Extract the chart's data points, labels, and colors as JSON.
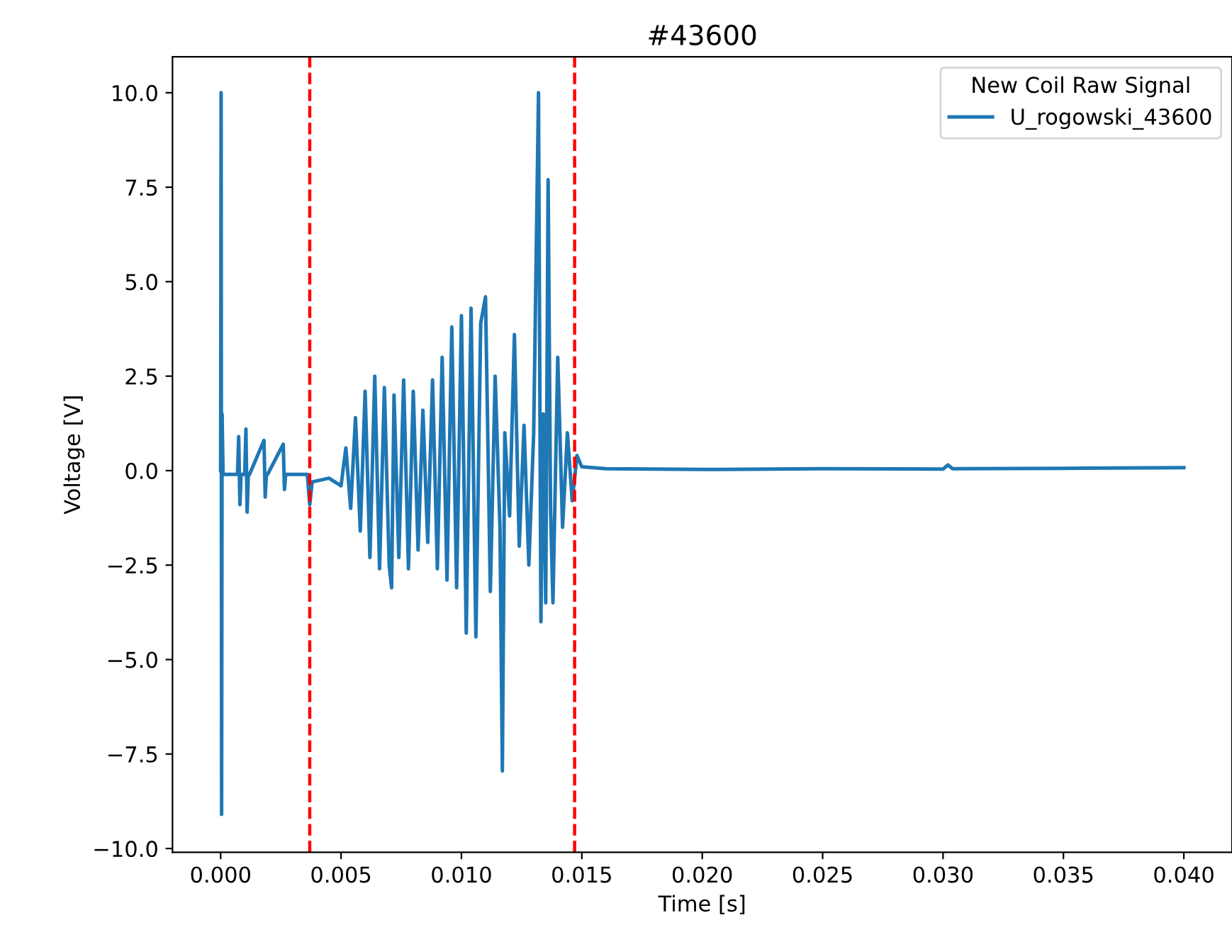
{
  "chart_data": {
    "type": "line",
    "title": "#43600",
    "xlabel": "Time [s]",
    "ylabel": "Voltage [V]",
    "legend_title": "New Coil Raw Signal",
    "legend": "top right",
    "grid": false,
    "xlim": [
      -0.002,
      0.042
    ],
    "xticks": [
      {
        "value": 0,
        "label": "0.000"
      },
      {
        "value": 0.005,
        "label": "0.005"
      },
      {
        "value": 0.01,
        "label": "0.010"
      },
      {
        "value": 0.015,
        "label": "0.015"
      },
      {
        "value": 0.02,
        "label": "0.020"
      },
      {
        "value": 0.025,
        "label": "0.025"
      },
      {
        "value": 0.03,
        "label": "0.030"
      },
      {
        "value": 0.035,
        "label": "0.035"
      },
      {
        "value": 0.04,
        "label": "0.040"
      }
    ],
    "ylim": [
      -10.1,
      10.95
    ],
    "yticks": [
      {
        "value": -10,
        "label": "−10.0"
      },
      {
        "value": -7.5,
        "label": "−7.5"
      },
      {
        "value": -5,
        "label": "−5.0"
      },
      {
        "value": -2.5,
        "label": "−2.5"
      },
      {
        "value": 0,
        "label": "0.0"
      },
      {
        "value": 2.5,
        "label": "2.5"
      },
      {
        "value": 5,
        "label": "5.0"
      },
      {
        "value": 7.5,
        "label": "7.5"
      },
      {
        "value": 10,
        "label": "10.0"
      }
    ],
    "ref_lines": [
      {
        "axis": "x",
        "value": 0.0037,
        "color": "#ff0000",
        "line_style": "dashed"
      },
      {
        "axis": "x",
        "value": 0.0147,
        "color": "#ff0000",
        "line_style": "dashed"
      }
    ],
    "series": [
      {
        "name": "U_rogowski_43600",
        "color": "#1f77b4",
        "x": [
          0,
          2e-05,
          4e-05,
          6e-05,
          0.0001,
          0.0007,
          0.00075,
          0.0008,
          0.00085,
          0.001,
          0.00105,
          0.0011,
          0.00115,
          0.0012,
          0.0018,
          0.00185,
          0.0019,
          0.00195,
          0.0026,
          0.00265,
          0.0027,
          0.00275,
          0.0036,
          0.0037,
          0.0038,
          0.0045,
          0.005,
          0.0052,
          0.0054,
          0.0056,
          0.0058,
          0.006,
          0.0062,
          0.0064,
          0.0066,
          0.0068,
          0.007,
          0.0071,
          0.0072,
          0.0074,
          0.0076,
          0.0078,
          0.008,
          0.0082,
          0.0084,
          0.0086,
          0.0088,
          0.009,
          0.0092,
          0.0094,
          0.0096,
          0.0098,
          0.01,
          0.0102,
          0.0104,
          0.0106,
          0.0108,
          0.011,
          0.0112,
          0.0114,
          0.0116,
          0.0117,
          0.0118,
          0.012,
          0.0122,
          0.0124,
          0.0126,
          0.0128,
          0.013,
          0.0132,
          0.0133,
          0.0134,
          0.0135,
          0.0136,
          0.0137,
          0.0138,
          0.014,
          0.0142,
          0.0144,
          0.0146,
          0.0148,
          0.015,
          0.016,
          0.02,
          0.025,
          0.03,
          0.0302,
          0.0304,
          0.035,
          0.04
        ],
        "values": [
          0,
          10.0,
          -9.1,
          1.5,
          -0.1,
          -0.1,
          0.9,
          -0.9,
          -0.1,
          -0.1,
          1.1,
          -1.1,
          -0.1,
          -0.1,
          0.8,
          -0.7,
          -0.1,
          -0.1,
          0.7,
          -0.5,
          -0.1,
          -0.1,
          -0.1,
          -0.9,
          -0.3,
          -0.2,
          -0.4,
          0.6,
          -1.0,
          1.4,
          -1.6,
          2.1,
          -2.3,
          2.5,
          -2.6,
          2.2,
          -2.5,
          -3.1,
          2.0,
          -2.3,
          2.4,
          -2.6,
          2.1,
          -2.1,
          1.6,
          -1.9,
          2.4,
          -2.6,
          3.0,
          -2.9,
          3.8,
          -3.1,
          4.1,
          -4.3,
          4.3,
          -4.4,
          3.9,
          4.6,
          -3.2,
          2.5,
          -1.5,
          -7.95,
          1.0,
          -1.2,
          3.6,
          -2.0,
          1.2,
          -2.5,
          1.0,
          10.0,
          -4.0,
          1.5,
          -3.5,
          7.7,
          -1.0,
          -3.5,
          3.0,
          -1.5,
          1.0,
          -0.8,
          0.4,
          0.1,
          0.05,
          0.03,
          0.05,
          0.04,
          0.15,
          0.05,
          0.06,
          0.08
        ]
      }
    ]
  }
}
